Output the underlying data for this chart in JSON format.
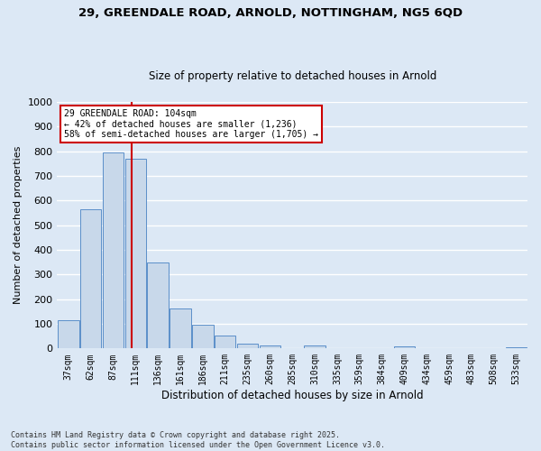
{
  "title1": "29, GREENDALE ROAD, ARNOLD, NOTTINGHAM, NG5 6QD",
  "title2": "Size of property relative to detached houses in Arnold",
  "categories": [
    "37sqm",
    "62sqm",
    "87sqm",
    "111sqm",
    "136sqm",
    "161sqm",
    "186sqm",
    "211sqm",
    "235sqm",
    "260sqm",
    "285sqm",
    "310sqm",
    "335sqm",
    "359sqm",
    "384sqm",
    "409sqm",
    "434sqm",
    "459sqm",
    "483sqm",
    "508sqm",
    "533sqm"
  ],
  "values": [
    115,
    565,
    795,
    770,
    350,
    163,
    98,
    52,
    18,
    12,
    0,
    11,
    0,
    0,
    0,
    8,
    0,
    0,
    0,
    0,
    5
  ],
  "bar_color": "#c8d8ea",
  "bar_edge_color": "#5b8fc9",
  "xlabel": "Distribution of detached houses by size in Arnold",
  "ylabel": "Number of detached properties",
  "vline_pos": 2.82,
  "vline_color": "#cc0000",
  "annotation_text": "29 GREENDALE ROAD: 104sqm\n← 42% of detached houses are smaller (1,236)\n58% of semi-detached houses are larger (1,705) →",
  "annotation_box_color": "#ffffff",
  "annotation_box_edge": "#cc0000",
  "ylim": [
    0,
    1000
  ],
  "yticks": [
    0,
    100,
    200,
    300,
    400,
    500,
    600,
    700,
    800,
    900,
    1000
  ],
  "plot_bg": "#dce8f5",
  "fig_bg": "#dce8f5",
  "grid_color": "#ffffff",
  "footer": "Contains HM Land Registry data © Crown copyright and database right 2025.\nContains public sector information licensed under the Open Government Licence v3.0."
}
